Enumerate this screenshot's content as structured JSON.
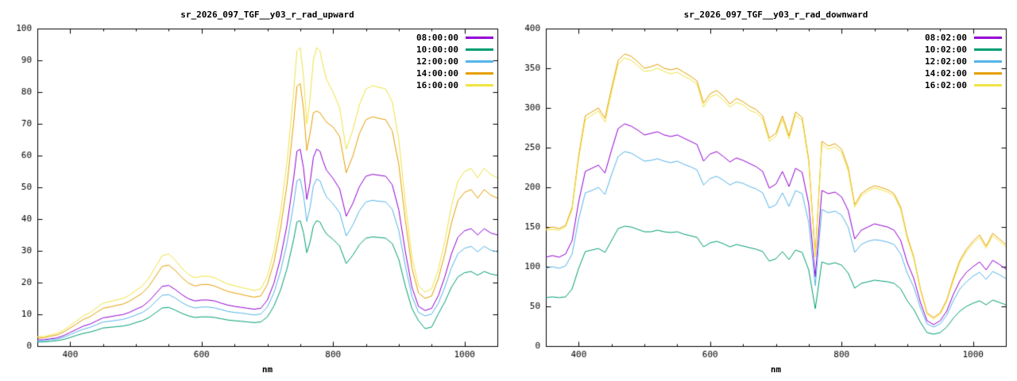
{
  "page": {
    "background": "#ffffff"
  },
  "palette": {
    "purple": "#9400d3",
    "green": "#009e73",
    "lightblue": "#56b4e9",
    "orange": "#e69f00",
    "yellow": "#f0e442"
  },
  "chart_data": [
    {
      "type": "line",
      "title": "sr_2026_097_TGF__y03_r_rad_upward",
      "xlabel": "nm",
      "xlim": [
        350,
        1050
      ],
      "ylim": [
        0,
        100
      ],
      "xticks_labeled": [
        400,
        600,
        800,
        1000
      ],
      "xminor_step": 50,
      "yticks": [
        0,
        10,
        20,
        30,
        40,
        50,
        60,
        70,
        80,
        90,
        100
      ],
      "grid": false,
      "legend_position": "top-right",
      "x": [
        350,
        360,
        370,
        380,
        390,
        400,
        410,
        420,
        430,
        440,
        450,
        460,
        470,
        480,
        490,
        500,
        510,
        520,
        530,
        540,
        550,
        560,
        570,
        580,
        590,
        600,
        610,
        620,
        630,
        640,
        650,
        660,
        670,
        680,
        690,
        700,
        710,
        720,
        730,
        740,
        745,
        750,
        755,
        760,
        765,
        770,
        775,
        780,
        785,
        790,
        800,
        810,
        820,
        830,
        840,
        850,
        860,
        870,
        880,
        890,
        900,
        910,
        920,
        930,
        940,
        950,
        960,
        970,
        980,
        990,
        1000,
        1010,
        1020,
        1030,
        1040,
        1050
      ],
      "series": [
        {
          "name": "08:00:00",
          "color": "#9400d3",
          "values": [
            2,
            2,
            2.3,
            2.6,
            3.3,
            4.3,
            5.3,
            6.3,
            6.9,
            7.9,
            8.9,
            9.2,
            9.6,
            9.9,
            10.6,
            11.6,
            12.5,
            14.2,
            16.5,
            18.8,
            19.1,
            17.8,
            16.2,
            14.9,
            14.2,
            14.5,
            14.5,
            14.2,
            13.5,
            12.9,
            12.5,
            12.2,
            11.9,
            11.6,
            11.9,
            14.5,
            19.8,
            27.7,
            38.3,
            52.8,
            61.4,
            62,
            56.1,
            46.2,
            51.5,
            59.4,
            62,
            61.4,
            58.1,
            55.4,
            52.8,
            49.5,
            40.9,
            44.9,
            50.2,
            53.5,
            54.1,
            53.8,
            53.5,
            50.8,
            42.9,
            29.7,
            18.5,
            12.5,
            11.2,
            11.9,
            15.8,
            21.8,
            29,
            34.3,
            36.3,
            37,
            35,
            37,
            35.6,
            35
          ]
        },
        {
          "name": "10:00:00",
          "color": "#009e73",
          "values": [
            1.3,
            1.3,
            1.5,
            1.7,
            2.1,
            2.7,
            3.4,
            4,
            4.4,
            5,
            5.7,
            5.9,
            6.1,
            6.3,
            6.7,
            7.4,
            8,
            9,
            10.5,
            12,
            12.2,
            11.3,
            10.3,
            9.5,
            9,
            9.2,
            9.2,
            9,
            8.6,
            8.2,
            8,
            7.8,
            7.6,
            7.4,
            7.6,
            9.2,
            12.6,
            17.6,
            24.4,
            33.6,
            39.1,
            39.5,
            35.7,
            29.4,
            32.8,
            37.8,
            39.5,
            39.1,
            37,
            35.3,
            33.6,
            31.5,
            26,
            28.6,
            31.9,
            34,
            34.4,
            34.2,
            34,
            32.3,
            27.3,
            18.9,
            11.8,
            8,
            5.5,
            6,
            10.1,
            13.9,
            18.5,
            21.8,
            23.1,
            23.5,
            22.3,
            23.5,
            22.7,
            22.3
          ]
        },
        {
          "name": "12:00:00",
          "color": "#56b4e9",
          "values": [
            1.7,
            1.7,
            2,
            2.2,
            2.8,
            3.6,
            4.5,
            5.3,
            5.9,
            6.7,
            7.6,
            7.8,
            8.1,
            8.4,
            9,
            9.8,
            10.6,
            12,
            14,
            16,
            16.2,
            15.1,
            13.7,
            12.6,
            12,
            12.3,
            12.3,
            12,
            11.5,
            10.9,
            10.6,
            10.4,
            10.1,
            9.8,
            10.1,
            12.3,
            16.8,
            23.5,
            32.5,
            44.8,
            52.1,
            52.6,
            47.6,
            39.2,
            43.7,
            50.4,
            52.6,
            52.1,
            49.3,
            47,
            44.8,
            42,
            34.7,
            38.1,
            42.6,
            45.4,
            45.9,
            45.6,
            45.4,
            43.1,
            36.4,
            25.2,
            15.7,
            10.6,
            9.5,
            10.1,
            13.4,
            18.5,
            24.6,
            29.1,
            30.8,
            31.4,
            29.7,
            31.4,
            30.2,
            29.7
          ]
        },
        {
          "name": "14:00:00",
          "color": "#e69f00",
          "values": [
            2.6,
            2.6,
            3.1,
            3.5,
            4.4,
            5.7,
            7,
            8.4,
            9.2,
            10.6,
            11.9,
            12.3,
            12.8,
            13.2,
            14.1,
            15.4,
            16.7,
            18.9,
            22,
            25.1,
            25.5,
            23.8,
            21.6,
            19.8,
            18.9,
            19.4,
            19.4,
            18.9,
            18,
            17.2,
            16.7,
            16.3,
            15.8,
            15.4,
            15.8,
            19.4,
            26.4,
            37,
            51,
            70.4,
            81.8,
            82.7,
            74.8,
            61.6,
            67,
            73.5,
            74,
            73.5,
            72,
            70.5,
            69,
            66,
            54.6,
            59.8,
            66.9,
            71.3,
            72.2,
            71.7,
            71.3,
            67.8,
            57.2,
            39.6,
            24.6,
            16.7,
            15,
            15.8,
            21.1,
            29,
            38.7,
            45.8,
            48.4,
            49.3,
            46.6,
            49.3,
            47.5,
            46.6
          ]
        },
        {
          "name": "16:00:00",
          "color": "#f0e442",
          "values": [
            3,
            3,
            3.5,
            4,
            5,
            6.5,
            8,
            9.5,
            10.5,
            12,
            13.5,
            14,
            14.5,
            15,
            16,
            17.5,
            19,
            21.5,
            25,
            28.5,
            29,
            27,
            24.5,
            22.5,
            21.5,
            22,
            22,
            21.5,
            20.5,
            19.5,
            19,
            18.5,
            18,
            17.5,
            18,
            22,
            30,
            42,
            58,
            80,
            93,
            94,
            85,
            70,
            78,
            90,
            94,
            93,
            88,
            84,
            80,
            75,
            62,
            68,
            76,
            81,
            82,
            81.5,
            81,
            77,
            65,
            45,
            28,
            19,
            17,
            18,
            24,
            33,
            44,
            52,
            55,
            56,
            53,
            56,
            54,
            53
          ]
        }
      ]
    },
    {
      "type": "line",
      "title": "sr_2026_097_TGF__y03_r_rad_downward",
      "xlabel": "nm",
      "xlim": [
        350,
        1050
      ],
      "ylim": [
        0,
        400
      ],
      "xticks_labeled": [
        400,
        600,
        800,
        1000
      ],
      "xminor_step": 50,
      "yticks": [
        0,
        50,
        100,
        150,
        200,
        250,
        300,
        350,
        400
      ],
      "grid": false,
      "legend_position": "top-right",
      "x": [
        350,
        360,
        370,
        380,
        390,
        400,
        410,
        420,
        430,
        440,
        450,
        460,
        470,
        480,
        490,
        500,
        510,
        520,
        530,
        540,
        550,
        560,
        570,
        580,
        590,
        600,
        610,
        620,
        630,
        640,
        650,
        660,
        670,
        680,
        690,
        700,
        710,
        720,
        730,
        740,
        750,
        760,
        770,
        780,
        790,
        800,
        810,
        820,
        830,
        840,
        850,
        860,
        870,
        880,
        890,
        900,
        910,
        920,
        930,
        940,
        950,
        960,
        970,
        980,
        990,
        1000,
        1010,
        1020,
        1030,
        1040,
        1050
      ],
      "series": [
        {
          "name": "08:02:00",
          "color": "#9400d3",
          "values": [
            112,
            114,
            112,
            116,
            133,
            182,
            220,
            224,
            228,
            218,
            247,
            274,
            280,
            277,
            272,
            266,
            268,
            270,
            266,
            264,
            266,
            262,
            258,
            254,
            233,
            242,
            245,
            239,
            232,
            237,
            234,
            230,
            226,
            220,
            199,
            204,
            220,
            201,
            224,
            219,
            179,
            87,
            196,
            192,
            194,
            188,
            171,
            135,
            146,
            150,
            154,
            152,
            150,
            146,
            133,
            105,
            85,
            55,
            32,
            27,
            32,
            44,
            65,
            82,
            93,
            100,
            106,
            96,
            108,
            103,
            97
          ]
        },
        {
          "name": "10:02:00",
          "color": "#009e73",
          "values": [
            61,
            62,
            61,
            62,
            72,
            98,
            119,
            121,
            123,
            118,
            133,
            148,
            151,
            150,
            147,
            144,
            144,
            146,
            144,
            143,
            144,
            141,
            139,
            137,
            125,
            130,
            132,
            129,
            125,
            128,
            126,
            124,
            122,
            119,
            107,
            110,
            119,
            109,
            121,
            118,
            96,
            47,
            106,
            103,
            105,
            102,
            92,
            73,
            79,
            81,
            83,
            82,
            81,
            79,
            72,
            57,
            46,
            30,
            17,
            15,
            17,
            24,
            35,
            44,
            50,
            54,
            57,
            52,
            58,
            55,
            52
          ]
        },
        {
          "name": "12:02:00",
          "color": "#56b4e9",
          "values": [
            98,
            100,
            98,
            101,
            116,
            160,
            193,
            196,
            200,
            191,
            216,
            239,
            245,
            243,
            238,
            233,
            234,
            236,
            233,
            231,
            233,
            229,
            226,
            222,
            203,
            211,
            214,
            209,
            203,
            207,
            205,
            201,
            198,
            193,
            174,
            178,
            193,
            176,
            196,
            192,
            156,
            76,
            172,
            168,
            170,
            165,
            150,
            118,
            128,
            132,
            134,
            133,
            131,
            128,
            116,
            92,
            74,
            48,
            28,
            24,
            28,
            39,
            57,
            72,
            81,
            88,
            93,
            84,
            94,
            90,
            85
          ]
        },
        {
          "name": "14:02:00",
          "color": "#e69f00",
          "values": [
            148,
            150,
            148,
            152,
            175,
            240,
            290,
            295,
            300,
            287,
            325,
            360,
            368,
            365,
            358,
            350,
            352,
            355,
            350,
            348,
            350,
            345,
            340,
            334,
            306,
            318,
            322,
            315,
            305,
            312,
            308,
            302,
            298,
            290,
            262,
            268,
            290,
            265,
            295,
            288,
            235,
            115,
            258,
            252,
            255,
            248,
            225,
            178,
            192,
            198,
            202,
            200,
            197,
            192,
            175,
            138,
            112,
            72,
            42,
            36,
            42,
            58,
            85,
            108,
            122,
            132,
            140,
            126,
            142,
            135,
            128
          ]
        },
        {
          "name": "16:02:00",
          "color": "#f0e442",
          "values": [
            146,
            147,
            146,
            150,
            172,
            236,
            285,
            291,
            296,
            282,
            320,
            355,
            363,
            360,
            353,
            346,
            347,
            350,
            346,
            343,
            345,
            340,
            336,
            330,
            301,
            314,
            317,
            310,
            301,
            307,
            304,
            297,
            294,
            286,
            258,
            264,
            286,
            261,
            291,
            284,
            231,
            112,
            254,
            248,
            251,
            244,
            221,
            175,
            189,
            195,
            199,
            197,
            194,
            189,
            172,
            135,
            110,
            70,
            40,
            34,
            40,
            56,
            82,
            105,
            119,
            129,
            137,
            123,
            139,
            132,
            125
          ]
        }
      ]
    }
  ]
}
